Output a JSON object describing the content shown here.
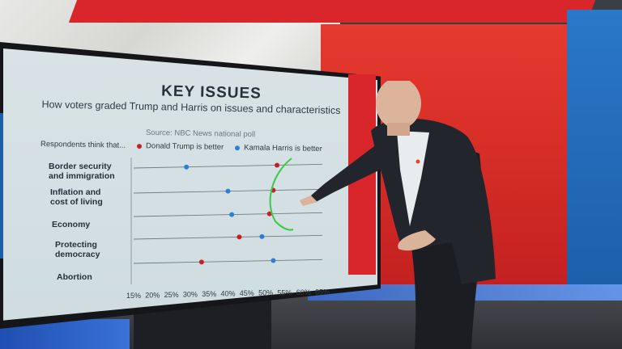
{
  "screen": {
    "title": "KEY ISSUES",
    "subtitle": "How voters graded Trump and Harris on issues and characteristics",
    "source": "Source: NBC News national poll",
    "legend_intro": "Respondents think that...",
    "legend_trump": "Donald Trump is better",
    "legend_harris": "Kamala Harris is better"
  },
  "colors": {
    "trump": "#c81e2a",
    "harris": "#2d7fd6",
    "annotation": "#3cc94a"
  },
  "chart_data": {
    "type": "scatter",
    "title": "KEY ISSUES",
    "subtitle": "How voters graded Trump and Harris on issues and characteristics",
    "categories": [
      "Border security\nand immigration",
      "Inflation and\ncost of living",
      "Economy",
      "Protecting\ndemocracy",
      "Abortion"
    ],
    "series": [
      {
        "name": "Donald Trump is better",
        "values": [
          53,
          52,
          51,
          43,
          33
        ]
      },
      {
        "name": "Kamala Harris is better",
        "values": [
          29,
          40,
          41,
          49,
          52
        ]
      }
    ],
    "x_ticks": [
      "15%",
      "20%",
      "25%",
      "30%",
      "35%",
      "40%",
      "45%",
      "50%",
      "55%",
      "60%",
      "65%"
    ],
    "xlim": [
      15,
      65
    ]
  }
}
